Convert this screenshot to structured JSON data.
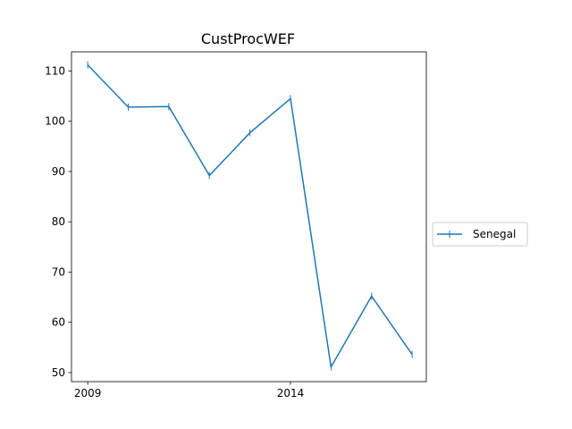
{
  "chart_data": {
    "type": "line",
    "title": "CustProcWEF",
    "xlabel": "",
    "ylabel": "",
    "x": [
      2009,
      2010,
      2011,
      2012,
      2013,
      2014,
      2015,
      2016,
      2017
    ],
    "xlim": [
      2008.6,
      2017.35
    ],
    "ylim": [
      48.2,
      113.8
    ],
    "xticks": [
      2009,
      2014
    ],
    "yticks": [
      50,
      60,
      70,
      80,
      90,
      100,
      110
    ],
    "grid": false,
    "legend": "center-right-outside",
    "series": [
      {
        "name": "Senegal",
        "color": "#1f77b4",
        "marker": "|",
        "values": [
          111.2,
          102.8,
          102.9,
          89.2,
          97.7,
          104.5,
          51.1,
          65.2,
          53.6
        ]
      }
    ]
  }
}
